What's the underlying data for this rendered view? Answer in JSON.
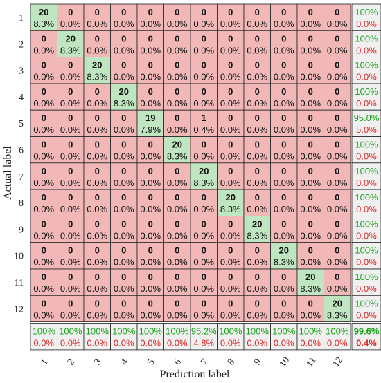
{
  "chart_data": {
    "type": "heatmap",
    "subtype": "confusion-matrix",
    "xlabel": "Prediction label",
    "ylabel": "Actual label",
    "classes": [
      "1",
      "2",
      "3",
      "4",
      "5",
      "6",
      "7",
      "8",
      "9",
      "10",
      "11",
      "12"
    ],
    "matrix": [
      [
        20,
        0,
        0,
        0,
        0,
        0,
        0,
        0,
        0,
        0,
        0,
        0
      ],
      [
        0,
        20,
        0,
        0,
        0,
        0,
        0,
        0,
        0,
        0,
        0,
        0
      ],
      [
        0,
        0,
        20,
        0,
        0,
        0,
        0,
        0,
        0,
        0,
        0,
        0
      ],
      [
        0,
        0,
        0,
        20,
        0,
        0,
        0,
        0,
        0,
        0,
        0,
        0
      ],
      [
        0,
        0,
        0,
        0,
        19,
        0,
        1,
        0,
        0,
        0,
        0,
        0
      ],
      [
        0,
        0,
        0,
        0,
        0,
        20,
        0,
        0,
        0,
        0,
        0,
        0
      ],
      [
        0,
        0,
        0,
        0,
        0,
        0,
        20,
        0,
        0,
        0,
        0,
        0
      ],
      [
        0,
        0,
        0,
        0,
        0,
        0,
        0,
        20,
        0,
        0,
        0,
        0
      ],
      [
        0,
        0,
        0,
        0,
        0,
        0,
        0,
        0,
        20,
        0,
        0,
        0
      ],
      [
        0,
        0,
        0,
        0,
        0,
        0,
        0,
        0,
        0,
        20,
        0,
        0
      ],
      [
        0,
        0,
        0,
        0,
        0,
        0,
        0,
        0,
        0,
        0,
        20,
        0
      ],
      [
        0,
        0,
        0,
        0,
        0,
        0,
        0,
        0,
        0,
        0,
        0,
        20
      ]
    ],
    "cell_percentages": [
      [
        "8.3%",
        "0.0%",
        "0.0%",
        "0.0%",
        "0.0%",
        "0.0%",
        "0.0%",
        "0.0%",
        "0.0%",
        "0.0%",
        "0.0%",
        "0.0%"
      ],
      [
        "0.0%",
        "8.3%",
        "0.0%",
        "0.0%",
        "0.0%",
        "0.0%",
        "0.0%",
        "0.0%",
        "0.0%",
        "0.0%",
        "0.0%",
        "0.0%"
      ],
      [
        "0.0%",
        "0.0%",
        "8.3%",
        "0.0%",
        "0.0%",
        "0.0%",
        "0.0%",
        "0.0%",
        "0.0%",
        "0.0%",
        "0.0%",
        "0.0%"
      ],
      [
        "0.0%",
        "0.0%",
        "0.0%",
        "8.3%",
        "0.0%",
        "0.0%",
        "0.0%",
        "0.0%",
        "0.0%",
        "0.0%",
        "0.0%",
        "0.0%"
      ],
      [
        "0.0%",
        "0.0%",
        "0.0%",
        "0.0%",
        "7.9%",
        "0.0%",
        "0.4%",
        "0.0%",
        "0.0%",
        "0.0%",
        "0.0%",
        "0.0%"
      ],
      [
        "0.0%",
        "0.0%",
        "0.0%",
        "0.0%",
        "0.0%",
        "8.3%",
        "0.0%",
        "0.0%",
        "0.0%",
        "0.0%",
        "0.0%",
        "0.0%"
      ],
      [
        "0.0%",
        "0.0%",
        "0.0%",
        "0.0%",
        "0.0%",
        "0.0%",
        "8.3%",
        "0.0%",
        "0.0%",
        "0.0%",
        "0.0%",
        "0.0%"
      ],
      [
        "0.0%",
        "0.0%",
        "0.0%",
        "0.0%",
        "0.0%",
        "0.0%",
        "0.0%",
        "8.3%",
        "0.0%",
        "0.0%",
        "0.0%",
        "0.0%"
      ],
      [
        "0.0%",
        "0.0%",
        "0.0%",
        "0.0%",
        "0.0%",
        "0.0%",
        "0.0%",
        "0.0%",
        "8.3%",
        "0.0%",
        "0.0%",
        "0.0%"
      ],
      [
        "0.0%",
        "0.0%",
        "0.0%",
        "0.0%",
        "0.0%",
        "0.0%",
        "0.0%",
        "0.0%",
        "0.0%",
        "8.3%",
        "0.0%",
        "0.0%"
      ],
      [
        "0.0%",
        "0.0%",
        "0.0%",
        "0.0%",
        "0.0%",
        "0.0%",
        "0.0%",
        "0.0%",
        "0.0%",
        "0.0%",
        "8.3%",
        "0.0%"
      ],
      [
        "0.0%",
        "0.0%",
        "0.0%",
        "0.0%",
        "0.0%",
        "0.0%",
        "0.0%",
        "0.0%",
        "0.0%",
        "0.0%",
        "0.0%",
        "8.3%"
      ]
    ],
    "row_summary": [
      {
        "correct": "100%",
        "error": "0.0%"
      },
      {
        "correct": "100%",
        "error": "0.0%"
      },
      {
        "correct": "100%",
        "error": "0.0%"
      },
      {
        "correct": "100%",
        "error": "0.0%"
      },
      {
        "correct": "95.0%",
        "error": "5.0%"
      },
      {
        "correct": "100%",
        "error": "0.0%"
      },
      {
        "correct": "100%",
        "error": "0.0%"
      },
      {
        "correct": "100%",
        "error": "0.0%"
      },
      {
        "correct": "100%",
        "error": "0.0%"
      },
      {
        "correct": "100%",
        "error": "0.0%"
      },
      {
        "correct": "100%",
        "error": "0.0%"
      },
      {
        "correct": "100%",
        "error": "0.0%"
      }
    ],
    "col_summary": [
      {
        "correct": "100%",
        "error": "0.0%"
      },
      {
        "correct": "100%",
        "error": "0.0%"
      },
      {
        "correct": "100%",
        "error": "0.0%"
      },
      {
        "correct": "100%",
        "error": "0.0%"
      },
      {
        "correct": "100%",
        "error": "0.0%"
      },
      {
        "correct": "100%",
        "error": "0.0%"
      },
      {
        "correct": "95.2%",
        "error": "4.8%"
      },
      {
        "correct": "100%",
        "error": "0.0%"
      },
      {
        "correct": "100%",
        "error": "0.0%"
      },
      {
        "correct": "100%",
        "error": "0.0%"
      },
      {
        "correct": "100%",
        "error": "0.0%"
      },
      {
        "correct": "100%",
        "error": "0.0%"
      }
    ],
    "overall": {
      "correct": "99.6%",
      "error": "0.4%"
    },
    "colors": {
      "diagonal": "#bfe6c0",
      "off_diagonal": "#f2b8b8",
      "summary_bg": "#f0f0f0",
      "correct_text": "#1aa31a",
      "error_text": "#dd2a2a"
    }
  }
}
